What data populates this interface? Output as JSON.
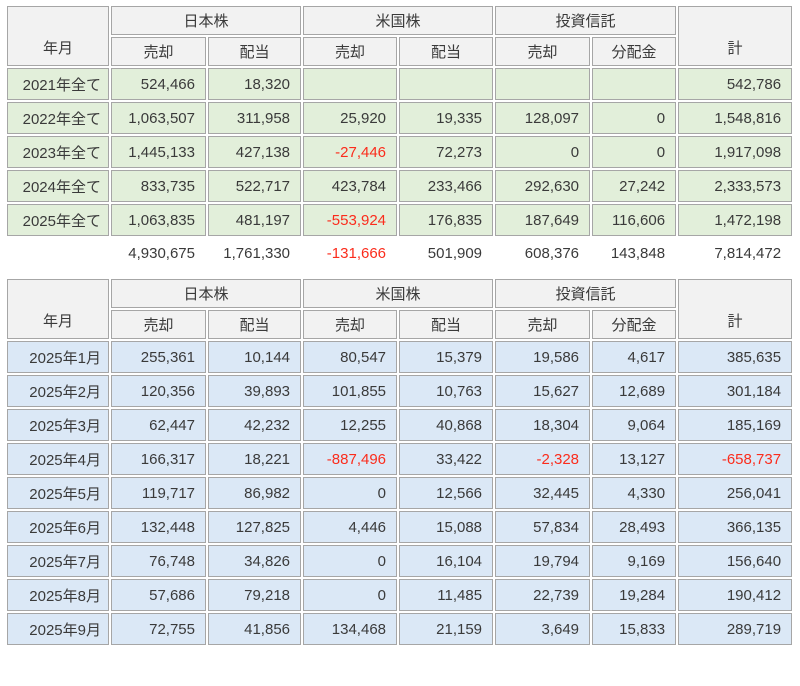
{
  "columns": {
    "row_header": "年月",
    "groups": [
      {
        "label": "日本株",
        "sub1": "売却",
        "sub2": "配当"
      },
      {
        "label": "米国株",
        "sub1": "売却",
        "sub2": "配当"
      },
      {
        "label": "投資信託",
        "sub1": "売却",
        "sub2": "分配金"
      }
    ],
    "total": "計"
  },
  "colors": {
    "header_bg": "#f2f2f2",
    "yearly_row_bg": "#e2efda",
    "monthly_row_bg": "#dbe8f6",
    "border": "#a6a6a6",
    "text": "#3a3a3a",
    "negative": "#fb2c1c"
  },
  "chart_data": [
    {
      "type": "table",
      "name": "yearly-summary",
      "row_header": "年月",
      "column_groups": [
        "日本株",
        "米国株",
        "投資信託"
      ],
      "columns": [
        "日本株 売却",
        "日本株 配当",
        "米国株 売却",
        "米国株 配当",
        "投資信託 売却",
        "投資信託 分配金",
        "計"
      ],
      "rows": [
        {
          "label": "2021年全て",
          "values": [
            "524,466",
            "18,320",
            "",
            "",
            "",
            "",
            "542,786"
          ]
        },
        {
          "label": "2022年全て",
          "values": [
            "1,063,507",
            "311,958",
            "25,920",
            "19,335",
            "128,097",
            "0",
            "1,548,816"
          ]
        },
        {
          "label": "2023年全て",
          "values": [
            "1,445,133",
            "427,138",
            "-27,446",
            "72,273",
            "0",
            "0",
            "1,917,098"
          ]
        },
        {
          "label": "2024年全て",
          "values": [
            "833,735",
            "522,717",
            "423,784",
            "233,466",
            "292,630",
            "27,242",
            "2,333,573"
          ]
        },
        {
          "label": "2025年全て",
          "values": [
            "1,063,835",
            "481,197",
            "-553,924",
            "176,835",
            "187,649",
            "116,606",
            "1,472,198"
          ]
        }
      ],
      "totals": {
        "label": "",
        "values": [
          "4,930,675",
          "1,761,330",
          "-131,666",
          "501,909",
          "608,376",
          "143,848",
          "7,814,472"
        ]
      }
    },
    {
      "type": "table",
      "name": "monthly-2025",
      "row_header": "年月",
      "column_groups": [
        "日本株",
        "米国株",
        "投資信託"
      ],
      "columns": [
        "日本株 売却",
        "日本株 配当",
        "米国株 売却",
        "米国株 配当",
        "投資信託 売却",
        "投資信託 分配金",
        "計"
      ],
      "rows": [
        {
          "label": "2025年1月",
          "values": [
            "255,361",
            "10,144",
            "80,547",
            "15,379",
            "19,586",
            "4,617",
            "385,635"
          ]
        },
        {
          "label": "2025年2月",
          "values": [
            "120,356",
            "39,893",
            "101,855",
            "10,763",
            "15,627",
            "12,689",
            "301,184"
          ]
        },
        {
          "label": "2025年3月",
          "values": [
            "62,447",
            "42,232",
            "12,255",
            "40,868",
            "18,304",
            "9,064",
            "185,169"
          ]
        },
        {
          "label": "2025年4月",
          "values": [
            "166,317",
            "18,221",
            "-887,496",
            "33,422",
            "-2,328",
            "13,127",
            "-658,737"
          ]
        },
        {
          "label": "2025年5月",
          "values": [
            "119,717",
            "86,982",
            "0",
            "12,566",
            "32,445",
            "4,330",
            "256,041"
          ]
        },
        {
          "label": "2025年6月",
          "values": [
            "132,448",
            "127,825",
            "4,446",
            "15,088",
            "57,834",
            "28,493",
            "366,135"
          ]
        },
        {
          "label": "2025年7月",
          "values": [
            "76,748",
            "34,826",
            "0",
            "16,104",
            "19,794",
            "9,169",
            "156,640"
          ]
        },
        {
          "label": "2025年8月",
          "values": [
            "57,686",
            "79,218",
            "0",
            "11,485",
            "22,739",
            "19,284",
            "190,412"
          ]
        },
        {
          "label": "2025年9月",
          "values": [
            "72,755",
            "41,856",
            "134,468",
            "21,159",
            "3,649",
            "15,833",
            "289,719"
          ]
        }
      ]
    }
  ]
}
